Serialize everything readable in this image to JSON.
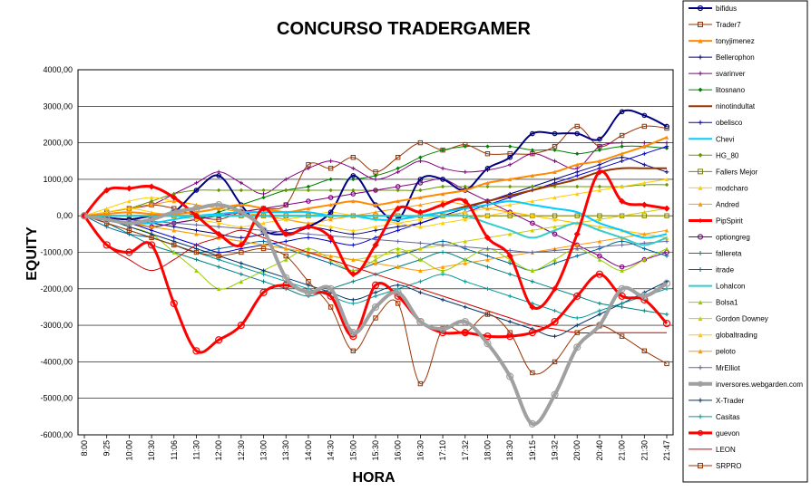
{
  "chart_data": {
    "type": "line",
    "title": "CONCURSO TRADERGAMER",
    "xlabel": "HORA",
    "ylabel": "EQUITY",
    "ylim": [
      -6000,
      4000
    ],
    "yticks": [
      4000,
      3000,
      2000,
      1000,
      0,
      -1000,
      -2000,
      -3000,
      -4000,
      -5000,
      -6000
    ],
    "ytick_labels": [
      "4000,00",
      "3000,00",
      "2000,00",
      "1000,00",
      "0,00",
      "-1000,00",
      "-2000,00",
      "-3000,00",
      "-4000,00",
      "-5000,00",
      "-6000,00"
    ],
    "categories": [
      "8:00",
      "9:25",
      "10:00",
      "10:30",
      "11:06",
      "11:30",
      "12:00",
      "12:30",
      "13:00",
      "13:30",
      "14:00",
      "14:30",
      "15:00",
      "15:30",
      "16:00",
      "16:30",
      "17:10",
      "17:32",
      "18:00",
      "18:30",
      "19:15",
      "19:32",
      "20:00",
      "20:40",
      "21:00",
      "21:30",
      "21:47"
    ],
    "grid": "horizontal",
    "legend_position": "right",
    "series": [
      {
        "name": "bifidus",
        "color": "#000080",
        "marker": "circle",
        "width": 2,
        "values": [
          0,
          -50,
          -100,
          0,
          100,
          700,
          1100,
          300,
          -400,
          -500,
          -300,
          100,
          1100,
          300,
          -100,
          1000,
          1000,
          700,
          1300,
          1600,
          2250,
          2250,
          2250,
          2100,
          2850,
          2750,
          2450
        ]
      },
      {
        "name": "Trader7",
        "color": "#993300",
        "marker": "square",
        "width": 1,
        "values": [
          0,
          100,
          200,
          300,
          200,
          0,
          -100,
          100,
          200,
          300,
          1400,
          1300,
          1600,
          1200,
          1600,
          2000,
          1800,
          1950,
          1700,
          1700,
          1700,
          1900,
          2450,
          1900,
          2200,
          2450,
          2400
        ]
      },
      {
        "name": "tonyjimenez",
        "color": "#FF8C00",
        "marker": "triangle",
        "width": 2,
        "values": [
          0,
          50,
          100,
          50,
          50,
          100,
          200,
          300,
          200,
          100,
          200,
          300,
          400,
          300,
          400,
          500,
          600,
          700,
          900,
          1000,
          1100,
          1200,
          1400,
          1500,
          1700,
          1900,
          2150
        ]
      },
      {
        "name": "Bellerophon",
        "color": "#000080",
        "marker": "cross",
        "width": 1,
        "values": [
          0,
          -50,
          -100,
          -200,
          -300,
          -400,
          -500,
          -600,
          -500,
          -400,
          -300,
          -400,
          -500,
          -400,
          -300,
          -200,
          0,
          200,
          400,
          600,
          800,
          1000,
          1200,
          1400,
          1600,
          1400,
          1200
        ]
      },
      {
        "name": "svarinver",
        "color": "#800080",
        "marker": "cross",
        "width": 1,
        "values": [
          0,
          100,
          200,
          300,
          600,
          900,
          1200,
          900,
          600,
          1000,
          1300,
          1500,
          1300,
          1000,
          1200,
          1500,
          1300,
          1200,
          1250,
          1400,
          1700,
          1500,
          1300,
          1900,
          2000,
          2000,
          2000
        ]
      },
      {
        "name": "litosnano",
        "color": "#008000",
        "marker": "diamond",
        "width": 1,
        "values": [
          0,
          -100,
          -200,
          -300,
          -200,
          -100,
          100,
          300,
          500,
          700,
          800,
          1000,
          1000,
          1100,
          1300,
          1600,
          1800,
          1900,
          1900,
          1900,
          1800,
          1800,
          1700,
          1800,
          1900,
          1900,
          1850
        ]
      },
      {
        "name": "ninotindultat",
        "color": "#993300",
        "marker": "none",
        "width": 2,
        "values": [
          0,
          0,
          0,
          0,
          0,
          0,
          0,
          0,
          0,
          0,
          0,
          0,
          0,
          0,
          0,
          0,
          100,
          250,
          400,
          550,
          700,
          850,
          1000,
          1200,
          1300,
          1300,
          1300
        ]
      },
      {
        "name": "obelisco",
        "color": "#0000CC",
        "marker": "cross",
        "width": 1,
        "values": [
          0,
          -100,
          -200,
          -400,
          -600,
          -800,
          -1000,
          -900,
          -800,
          -700,
          -600,
          -700,
          -800,
          -600,
          -400,
          -200,
          0,
          100,
          300,
          500,
          700,
          900,
          1100,
          1300,
          1500,
          1700,
          1900
        ]
      },
      {
        "name": "Chevi",
        "color": "#00CCFF",
        "marker": "none",
        "width": 2,
        "values": [
          0,
          -100,
          -200,
          -200,
          -100,
          0,
          50,
          100,
          100,
          100,
          100,
          0,
          0,
          -100,
          -100,
          0,
          100,
          200,
          300,
          400,
          300,
          200,
          100,
          -200,
          -400,
          -600,
          -500
        ]
      },
      {
        "name": "HG_80",
        "color": "#669900",
        "marker": "diamond",
        "width": 1,
        "values": [
          0,
          100,
          200,
          400,
          600,
          700,
          700,
          700,
          700,
          700,
          700,
          700,
          700,
          700,
          700,
          700,
          800,
          800,
          800,
          800,
          800,
          800,
          800,
          800,
          800,
          850,
          850
        ]
      },
      {
        "name": "Fallers Mejor",
        "color": "#808000",
        "marker": "square",
        "width": 1,
        "values": [
          0,
          0,
          0,
          0,
          0,
          0,
          0,
          0,
          0,
          0,
          0,
          0,
          0,
          0,
          0,
          0,
          0,
          0,
          0,
          0,
          0,
          0,
          0,
          0,
          0,
          0,
          0
        ]
      },
      {
        "name": "modcharo",
        "color": "#FFCC00",
        "marker": "triangle",
        "width": 1,
        "values": [
          0,
          200,
          400,
          500,
          400,
          300,
          200,
          100,
          0,
          -100,
          -200,
          -300,
          -400,
          -300,
          -200,
          -100,
          0,
          100,
          200,
          300,
          400,
          500,
          600,
          700,
          800,
          900,
          1000
        ]
      },
      {
        "name": "Andred",
        "color": "#FF9900",
        "marker": "triangle",
        "width": 1,
        "values": [
          0,
          100,
          200,
          300,
          400,
          300,
          200,
          100,
          0,
          -100,
          -200,
          -100,
          0,
          100,
          200,
          300,
          400,
          300,
          200,
          100,
          0,
          -100,
          -200,
          -300,
          -400,
          -500,
          -600
        ]
      },
      {
        "name": "PipSpirit",
        "color": "#FF0000",
        "marker": "diamond",
        "width": 3,
        "values": [
          0,
          700,
          750,
          800,
          500,
          0,
          -500,
          -800,
          200,
          -500,
          -300,
          -600,
          -1600,
          -800,
          200,
          100,
          300,
          400,
          -600,
          -1100,
          -2500,
          -2000,
          -500,
          1200,
          400,
          300,
          200
        ]
      },
      {
        "name": "optiongreg",
        "color": "#800080",
        "marker": "circle",
        "width": 1,
        "values": [
          0,
          -100,
          -200,
          -300,
          -200,
          -100,
          0,
          100,
          200,
          300,
          400,
          500,
          600,
          700,
          800,
          900,
          1000,
          700,
          400,
          100,
          -200,
          -500,
          -800,
          -1100,
          -1400,
          -1200,
          -1000
        ]
      },
      {
        "name": "fallereta",
        "color": "#008080",
        "marker": "cross",
        "width": 1,
        "values": [
          0,
          -200,
          -500,
          -800,
          -1000,
          -1200,
          -1400,
          -1600,
          -1800,
          -2000,
          -2200,
          -2000,
          -1800,
          -1600,
          -1400,
          -1200,
          -1000,
          -1200,
          -1400,
          -1600,
          -1800,
          -2000,
          -2200,
          -2400,
          -2500,
          -2600,
          -2700
        ]
      },
      {
        "name": "itrade",
        "color": "#006699",
        "marker": "cross",
        "width": 1,
        "values": [
          0,
          -300,
          -500,
          -600,
          -800,
          -1000,
          -900,
          -800,
          -700,
          -900,
          -1100,
          -1300,
          -1500,
          -1300,
          -1100,
          -900,
          -700,
          -900,
          -1100,
          -1300,
          -1500,
          -1300,
          -1100,
          -900,
          -700,
          -900,
          -1100
        ]
      },
      {
        "name": "Lohalcon",
        "color": "#33CCCC",
        "marker": "none",
        "width": 2,
        "values": [
          0,
          0,
          0,
          0,
          0,
          0,
          0,
          0,
          0,
          0,
          0,
          0,
          0,
          0,
          0,
          0,
          0,
          0,
          -200,
          -400,
          -600,
          -400,
          -200,
          -400,
          -600,
          -800,
          -600
        ]
      },
      {
        "name": "Bolsa1",
        "color": "#99CC00",
        "marker": "triangle",
        "width": 1,
        "values": [
          0,
          -100,
          -300,
          -500,
          -1000,
          -1500,
          -2000,
          -1800,
          -1500,
          -1200,
          -900,
          -1200,
          -1500,
          -1200,
          -900,
          -1200,
          -1500,
          -1200,
          -900,
          -1200,
          -1500,
          -1200,
          -900,
          -1200,
          -1500,
          -1200,
          -900
        ]
      },
      {
        "name": "Gordon Downey",
        "color": "#CCCC00",
        "marker": "triangle",
        "width": 1,
        "values": [
          0,
          -100,
          -200,
          -300,
          -400,
          -500,
          -600,
          -700,
          -800,
          -900,
          -1000,
          -1100,
          -1200,
          -1100,
          -1000,
          -900,
          -800,
          -700,
          -600,
          -500,
          -400,
          -300,
          -200,
          -100,
          0,
          100,
          200
        ]
      },
      {
        "name": "globaltrading",
        "color": "#FFCC00",
        "marker": "triangle",
        "width": 1,
        "values": [
          0,
          100,
          200,
          100,
          0,
          -100,
          -200,
          -300,
          -200,
          -100,
          0,
          100,
          0,
          -100,
          -200,
          -300,
          -200,
          -100,
          0,
          100,
          0,
          -100,
          -200,
          -300,
          -400,
          -500,
          -600
        ]
      },
      {
        "name": "peloto",
        "color": "#FF9900",
        "marker": "triangle",
        "width": 1,
        "values": [
          0,
          -100,
          -200,
          -300,
          -400,
          -500,
          -600,
          -700,
          -800,
          -900,
          -1000,
          -1100,
          -1200,
          -1300,
          -1400,
          -1500,
          -1400,
          -1300,
          -1200,
          -1100,
          -1000,
          -900,
          -800,
          -700,
          -600,
          -500,
          -400
        ]
      },
      {
        "name": "MrElliot",
        "color": "#666699",
        "marker": "cross",
        "width": 1,
        "values": [
          0,
          -50,
          -100,
          -150,
          -200,
          -250,
          -300,
          -350,
          -400,
          -450,
          -500,
          -550,
          -600,
          -650,
          -700,
          -750,
          -800,
          -850,
          -900,
          -950,
          -1000,
          -950,
          -900,
          -850,
          -800,
          -750,
          -700
        ]
      },
      {
        "name": "inversores.webgarden.com",
        "color": "#A0A0A0",
        "marker": "circle",
        "width": 4,
        "values": [
          0,
          -100,
          -200,
          -100,
          100,
          200,
          300,
          100,
          -400,
          -1700,
          -2100,
          -2000,
          -3200,
          -2500,
          -2100,
          -2900,
          -3100,
          -2900,
          -3500,
          -4400,
          -5700,
          -4900,
          -3600,
          -3000,
          -2000,
          -2200,
          -1850
        ]
      },
      {
        "name": "X-Trader",
        "color": "#003366",
        "marker": "cross",
        "width": 1,
        "values": [
          0,
          -100,
          -300,
          -500,
          -700,
          -900,
          -1100,
          -1300,
          -1500,
          -1700,
          -1900,
          -2100,
          -2300,
          -2100,
          -1900,
          -2100,
          -2300,
          -2500,
          -2700,
          -2900,
          -3100,
          -3300,
          -3000,
          -2700,
          -2400,
          -2100,
          -1800
        ]
      },
      {
        "name": "Casitas",
        "color": "#009999",
        "marker": "cross",
        "width": 1,
        "values": [
          0,
          -200,
          -400,
          -600,
          -800,
          -1000,
          -1200,
          -1400,
          -1600,
          -1800,
          -2000,
          -2200,
          -2400,
          -2200,
          -2000,
          -1800,
          -1600,
          -1800,
          -2000,
          -2200,
          -2400,
          -2600,
          -2800,
          -2600,
          -2400,
          -2200,
          -2000
        ]
      },
      {
        "name": "guevon",
        "color": "#FF0000",
        "marker": "circle",
        "width": 3,
        "values": [
          0,
          -800,
          -1000,
          -800,
          -2400,
          -3700,
          -3400,
          -3000,
          -2100,
          -1900,
          -2100,
          -2200,
          -3300,
          -1900,
          -2200,
          -2900,
          -3200,
          -3200,
          -3300,
          -3300,
          -3200,
          -2900,
          -2200,
          -1600,
          -2200,
          -2300,
          -2950
        ]
      },
      {
        "name": "LEON",
        "color": "#CC0000",
        "marker": "none",
        "width": 1,
        "values": [
          0,
          -800,
          -1200,
          -1500,
          -1200,
          -800,
          -600,
          -400,
          -600,
          -800,
          -1000,
          -1200,
          -1400,
          -1600,
          -1800,
          -2000,
          -2200,
          -2400,
          -2600,
          -2800,
          -3000,
          -3100,
          -3200,
          -3200,
          -3200,
          -3200,
          -3200
        ]
      },
      {
        "name": "SRPRO",
        "color": "#993300",
        "marker": "square",
        "width": 1,
        "values": [
          0,
          -200,
          -400,
          -600,
          -800,
          -1000,
          -1100,
          -1000,
          -900,
          -1100,
          -1800,
          -2500,
          -3700,
          -2800,
          -2400,
          -4600,
          -3100,
          -3200,
          -2700,
          -3200,
          -4300,
          -4000,
          -3200,
          -3000,
          -3300,
          -3700,
          -4050
        ]
      }
    ]
  }
}
